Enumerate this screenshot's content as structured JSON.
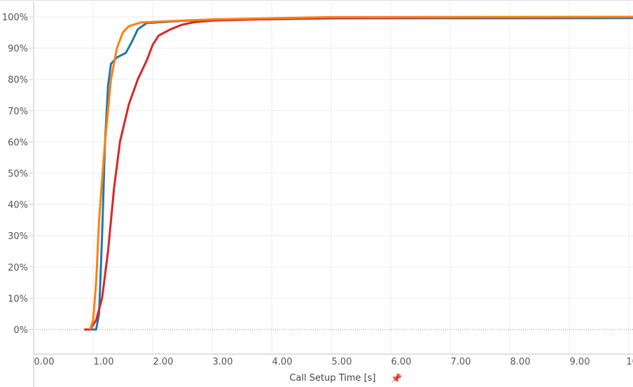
{
  "chart_data": {
    "type": "line",
    "title": "",
    "xlabel": "Call Setup Time [s]",
    "xlabel_icon": "pin-icon",
    "ylabel": "",
    "xlim": [
      0,
      10.2
    ],
    "ylim": [
      0,
      100
    ],
    "grid": true,
    "legend": "none",
    "x_ticks": [
      "0.00",
      "1.00",
      "2.00",
      "3.00",
      "4.00",
      "5.00",
      "6.00",
      "7.00",
      "8.00",
      "9.00",
      "10.00"
    ],
    "y_ticks": [
      "0%",
      "10%",
      "20%",
      "30%",
      "40%",
      "50%",
      "60%",
      "70%",
      "80%",
      "90%",
      "100%"
    ],
    "series": [
      {
        "color": "#1f77b4",
        "points": [
          [
            0.95,
            0
          ],
          [
            1.05,
            0
          ],
          [
            1.1,
            5
          ],
          [
            1.15,
            30
          ],
          [
            1.2,
            60
          ],
          [
            1.25,
            78
          ],
          [
            1.3,
            85
          ],
          [
            1.4,
            87
          ],
          [
            1.55,
            88.5
          ],
          [
            1.65,
            92
          ],
          [
            1.75,
            96
          ],
          [
            1.9,
            98
          ],
          [
            2.5,
            98.7
          ],
          [
            3,
            99
          ],
          [
            5,
            99.5
          ],
          [
            10.2,
            99.6
          ]
        ]
      },
      {
        "color": "#d62728",
        "points": [
          [
            0.85,
            0
          ],
          [
            0.95,
            0
          ],
          [
            1.05,
            3
          ],
          [
            1.15,
            10
          ],
          [
            1.25,
            25
          ],
          [
            1.35,
            45
          ],
          [
            1.45,
            60
          ],
          [
            1.6,
            72
          ],
          [
            1.75,
            80
          ],
          [
            1.9,
            86
          ],
          [
            2.0,
            91
          ],
          [
            2.1,
            94
          ],
          [
            2.3,
            96
          ],
          [
            2.5,
            97.5
          ],
          [
            2.7,
            98.3
          ],
          [
            3.0,
            98.8
          ],
          [
            4,
            99.3
          ],
          [
            5,
            99.7
          ],
          [
            10.2,
            99.9
          ]
        ]
      },
      {
        "color": "#ff7f0e",
        "points": [
          [
            0.95,
            0
          ],
          [
            1.0,
            3
          ],
          [
            1.05,
            15
          ],
          [
            1.1,
            35
          ],
          [
            1.2,
            60
          ],
          [
            1.3,
            80
          ],
          [
            1.4,
            90
          ],
          [
            1.5,
            95
          ],
          [
            1.6,
            97
          ],
          [
            1.8,
            98.2
          ],
          [
            2.5,
            98.8
          ],
          [
            3,
            99.2
          ],
          [
            5,
            99.9
          ],
          [
            10.2,
            100
          ]
        ]
      }
    ]
  }
}
